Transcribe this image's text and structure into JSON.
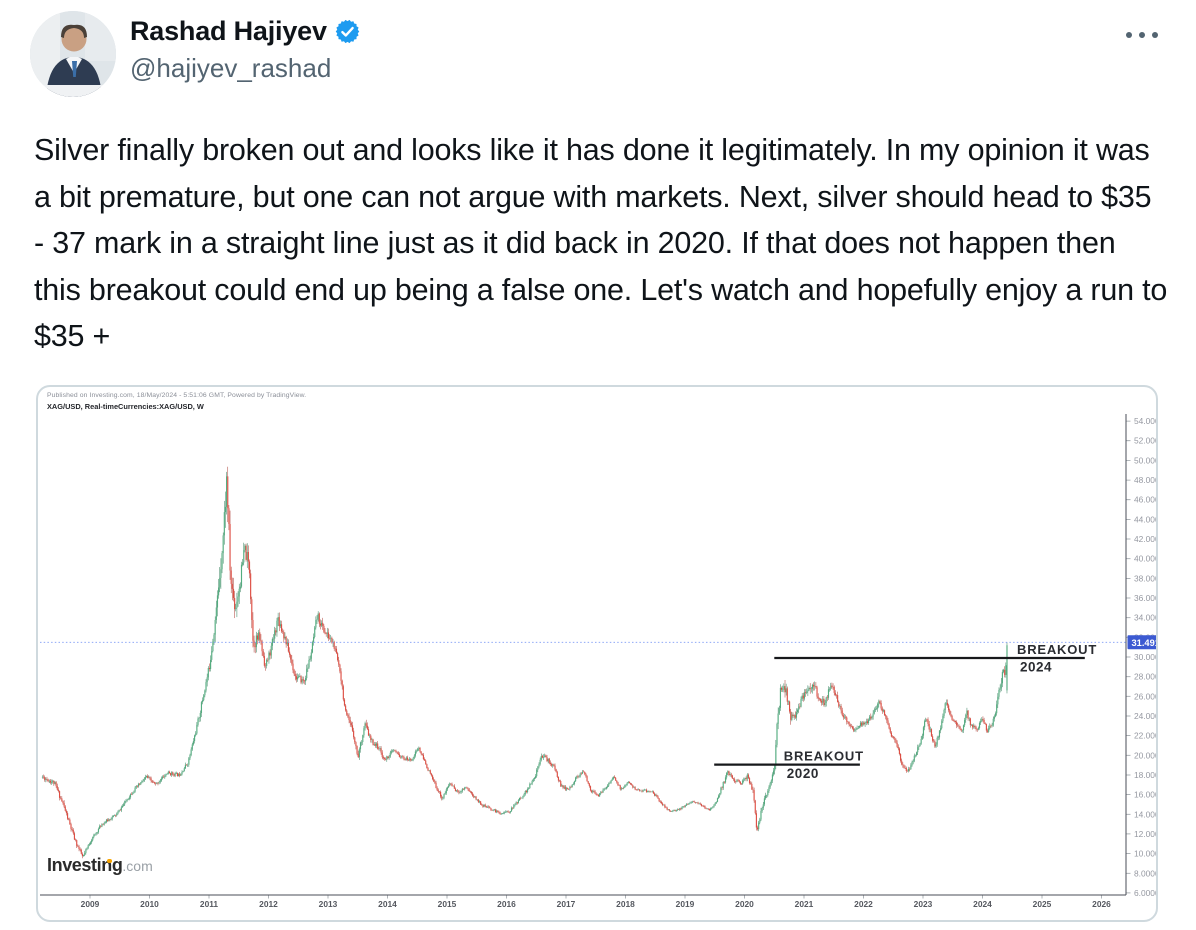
{
  "tweet": {
    "author": {
      "name": "Rashad Hajiyev",
      "handle": "@hajiyev_rashad",
      "verified": true
    },
    "body": "Silver finally broken out and looks like it has done it legitimately. In my opinion it was a bit premature, but one can not argue with markets. Next, silver should head to $35 - 37 mark in a straight line just as it did back in 2020. If that does not happen then this breakout could end up being a false one. Let's watch and hopefully enjoy a run to $35 +",
    "accent_color": "#1d9bf0"
  },
  "chart": {
    "attribution": "Published on Investing.com, 18/May/2024 - 5:51:06 GMT, Powered by TradingView.",
    "symbol_line": "XAG/USD, Real-timeCurrencies:XAG/USD, W",
    "watermark": {
      "brand": "Investing",
      "suffix": ".com"
    },
    "chart_data": {
      "type": "candlestick",
      "symbol": "XAG/USD",
      "timeframe": "W",
      "x_ticks": [
        2009,
        2010,
        2011,
        2012,
        2013,
        2014,
        2015,
        2016,
        2017,
        2018,
        2019,
        2020,
        2021,
        2022,
        2023,
        2024,
        2025,
        2026
      ],
      "y_ticks": [
        54,
        52,
        50,
        48,
        46,
        44,
        42,
        40,
        38,
        36,
        34,
        32,
        30,
        28,
        26,
        24,
        22,
        20,
        18,
        16,
        14,
        12,
        10,
        8,
        6
      ],
      "xlim": [
        2008.2,
        2026.4
      ],
      "ylim": [
        5.8,
        54.7
      ],
      "last_price": 31.4915,
      "levels": [
        {
          "name": "breakout-2024",
          "price": 29.9,
          "from": 2020.5,
          "to": 2025.72,
          "label": "BREAKOUT",
          "sublabel": "2024",
          "label_year": 2024.58
        },
        {
          "name": "breakout-2020",
          "price": 19.05,
          "from": 2019.49,
          "to": 2021.94,
          "label": "BREAKOUT",
          "sublabel": "2020",
          "label_year": 2020.66
        }
      ],
      "candles": {
        "start": 2008.2,
        "end": 2024.42,
        "per_year": 52,
        "last": {
          "o": 26.6,
          "c": 31.2,
          "h": 31.4915,
          "l": 26.3
        }
      },
      "anchors": [
        [
          2008.2,
          17.8,
          1.4
        ],
        [
          2008.4,
          17.2,
          1.5
        ],
        [
          2008.55,
          15.0,
          1.9
        ],
        [
          2008.75,
          11.3,
          2.3
        ],
        [
          2008.88,
          9.6,
          2.1
        ],
        [
          2009.0,
          11.2,
          1.6
        ],
        [
          2009.2,
          13.0,
          1.3
        ],
        [
          2009.45,
          14.0,
          1.2
        ],
        [
          2009.7,
          16.2,
          1.2
        ],
        [
          2009.95,
          17.8,
          1.3
        ],
        [
          2010.1,
          17.0,
          1.1
        ],
        [
          2010.3,
          18.2,
          1.1
        ],
        [
          2010.5,
          18.0,
          1.0
        ],
        [
          2010.65,
          19.3,
          1.2
        ],
        [
          2010.8,
          23.0,
          1.5
        ],
        [
          2011.0,
          28.8,
          1.9
        ],
        [
          2011.12,
          34.5,
          2.4
        ],
        [
          2011.24,
          42.5,
          3.2
        ],
        [
          2011.3,
          48.3,
          3.4
        ],
        [
          2011.36,
          38.0,
          3.4
        ],
        [
          2011.44,
          35.0,
          2.8
        ],
        [
          2011.52,
          37.5,
          2.4
        ],
        [
          2011.6,
          41.0,
          2.3
        ],
        [
          2011.68,
          39.0,
          2.4
        ],
        [
          2011.74,
          31.5,
          2.6
        ],
        [
          2011.85,
          32.0,
          2.0
        ],
        [
          2011.95,
          29.0,
          1.8
        ],
        [
          2012.05,
          31.0,
          1.7
        ],
        [
          2012.16,
          34.0,
          1.7
        ],
        [
          2012.3,
          31.5,
          1.5
        ],
        [
          2012.45,
          28.0,
          1.4
        ],
        [
          2012.6,
          27.5,
          1.3
        ],
        [
          2012.72,
          30.5,
          1.4
        ],
        [
          2012.82,
          34.2,
          1.5
        ],
        [
          2012.95,
          32.5,
          1.4
        ],
        [
          2013.08,
          31.5,
          1.3
        ],
        [
          2013.2,
          28.8,
          1.5
        ],
        [
          2013.3,
          24.0,
          1.9
        ],
        [
          2013.42,
          22.5,
          1.6
        ],
        [
          2013.5,
          19.8,
          1.6
        ],
        [
          2013.62,
          23.2,
          1.5
        ],
        [
          2013.72,
          21.5,
          1.3
        ],
        [
          2013.85,
          20.8,
          1.2
        ],
        [
          2013.95,
          19.5,
          1.1
        ],
        [
          2014.1,
          20.5,
          1.0
        ],
        [
          2014.25,
          19.7,
          1.0
        ],
        [
          2014.4,
          19.5,
          0.9
        ],
        [
          2014.52,
          20.8,
          1.0
        ],
        [
          2014.65,
          19.0,
          1.0
        ],
        [
          2014.8,
          17.0,
          1.1
        ],
        [
          2014.92,
          15.6,
          1.2
        ],
        [
          2015.05,
          17.2,
          1.1
        ],
        [
          2015.18,
          16.2,
          1.0
        ],
        [
          2015.32,
          16.8,
          0.9
        ],
        [
          2015.45,
          15.8,
          0.9
        ],
        [
          2015.6,
          14.9,
          0.9
        ],
        [
          2015.75,
          14.5,
          0.9
        ],
        [
          2015.9,
          14.1,
          0.9
        ],
        [
          2016.05,
          14.3,
          0.9
        ],
        [
          2016.2,
          15.4,
          1.0
        ],
        [
          2016.35,
          16.5,
          1.1
        ],
        [
          2016.48,
          17.8,
          1.2
        ],
        [
          2016.58,
          20.1,
          1.3
        ],
        [
          2016.68,
          19.6,
          1.2
        ],
        [
          2016.8,
          18.8,
          1.1
        ],
        [
          2016.92,
          16.8,
          1.1
        ],
        [
          2017.05,
          16.5,
          0.9
        ],
        [
          2017.18,
          17.8,
          0.9
        ],
        [
          2017.3,
          18.3,
          0.9
        ],
        [
          2017.42,
          16.4,
          0.9
        ],
        [
          2017.55,
          15.9,
          0.9
        ],
        [
          2017.68,
          16.8,
          0.9
        ],
        [
          2017.8,
          17.8,
          0.9
        ],
        [
          2017.92,
          16.5,
          0.8
        ],
        [
          2018.05,
          17.2,
          0.8
        ],
        [
          2018.18,
          16.5,
          0.8
        ],
        [
          2018.32,
          16.4,
          0.8
        ],
        [
          2018.45,
          16.3,
          0.8
        ],
        [
          2018.58,
          15.3,
          0.8
        ],
        [
          2018.72,
          14.4,
          0.8
        ],
        [
          2018.85,
          14.3,
          0.8
        ],
        [
          2018.98,
          14.8,
          0.8
        ],
        [
          2019.1,
          15.3,
          0.8
        ],
        [
          2019.25,
          15.0,
          0.8
        ],
        [
          2019.4,
          14.4,
          0.8
        ],
        [
          2019.52,
          15.2,
          1.0
        ],
        [
          2019.62,
          16.8,
          1.3
        ],
        [
          2019.72,
          18.3,
          1.3
        ],
        [
          2019.82,
          17.5,
          1.1
        ],
        [
          2019.95,
          17.2,
          1.0
        ],
        [
          2020.05,
          17.9,
          1.2
        ],
        [
          2020.14,
          16.5,
          1.8
        ],
        [
          2020.21,
          12.2,
          2.6
        ],
        [
          2020.3,
          14.8,
          1.9
        ],
        [
          2020.4,
          16.5,
          1.6
        ],
        [
          2020.5,
          18.5,
          2.0
        ],
        [
          2020.56,
          24.0,
          2.8
        ],
        [
          2020.62,
          27.3,
          2.5
        ],
        [
          2020.7,
          26.5,
          2.1
        ],
        [
          2020.78,
          23.8,
          1.9
        ],
        [
          2020.88,
          24.3,
          1.7
        ],
        [
          2020.98,
          26.0,
          1.6
        ],
        [
          2021.08,
          26.8,
          1.7
        ],
        [
          2021.15,
          27.3,
          1.9
        ],
        [
          2021.25,
          25.8,
          1.5
        ],
        [
          2021.35,
          25.3,
          1.3
        ],
        [
          2021.45,
          27.2,
          1.3
        ],
        [
          2021.55,
          25.8,
          1.3
        ],
        [
          2021.65,
          24.0,
          1.2
        ],
        [
          2021.75,
          23.3,
          1.2
        ],
        [
          2021.85,
          22.5,
          1.2
        ],
        [
          2021.95,
          23.2,
          1.1
        ],
        [
          2022.05,
          23.3,
          1.2
        ],
        [
          2022.15,
          24.2,
          1.3
        ],
        [
          2022.25,
          25.3,
          1.4
        ],
        [
          2022.35,
          24.3,
          1.3
        ],
        [
          2022.45,
          22.3,
          1.3
        ],
        [
          2022.55,
          21.3,
          1.2
        ],
        [
          2022.65,
          19.0,
          1.3
        ],
        [
          2022.75,
          18.4,
          1.3
        ],
        [
          2022.85,
          19.8,
          1.3
        ],
        [
          2022.95,
          21.3,
          1.3
        ],
        [
          2023.05,
          23.8,
          1.3
        ],
        [
          2023.13,
          22.3,
          1.3
        ],
        [
          2023.2,
          20.8,
          1.3
        ],
        [
          2023.3,
          22.8,
          1.3
        ],
        [
          2023.38,
          25.3,
          1.3
        ],
        [
          2023.48,
          23.8,
          1.2
        ],
        [
          2023.58,
          23.2,
          1.2
        ],
        [
          2023.66,
          22.3,
          1.2
        ],
        [
          2023.73,
          24.5,
          1.2
        ],
        [
          2023.82,
          22.8,
          1.2
        ],
        [
          2023.92,
          22.8,
          1.1
        ],
        [
          2024.0,
          23.8,
          1.1
        ],
        [
          2024.08,
          22.4,
          1.1
        ],
        [
          2024.16,
          23.2,
          1.3
        ],
        [
          2024.24,
          25.0,
          1.5
        ],
        [
          2024.3,
          27.2,
          1.9
        ],
        [
          2024.34,
          28.6,
          1.7
        ],
        [
          2024.38,
          27.8,
          1.5
        ],
        [
          2024.42,
          31.2,
          1.7
        ]
      ],
      "colors": {
        "up": "#53ac7f",
        "up_wick": "#2e7d58",
        "down": "#de4e43",
        "down_wick": "#a93a31",
        "axis": "#4a4e57",
        "tick_label": "#9598a1",
        "x_label": "#55585f",
        "last_price_line": "#7f9cf5",
        "last_price_bg": "#3c5ad2",
        "level": "#17181b",
        "level_text": "#2a2c31"
      }
    }
  }
}
